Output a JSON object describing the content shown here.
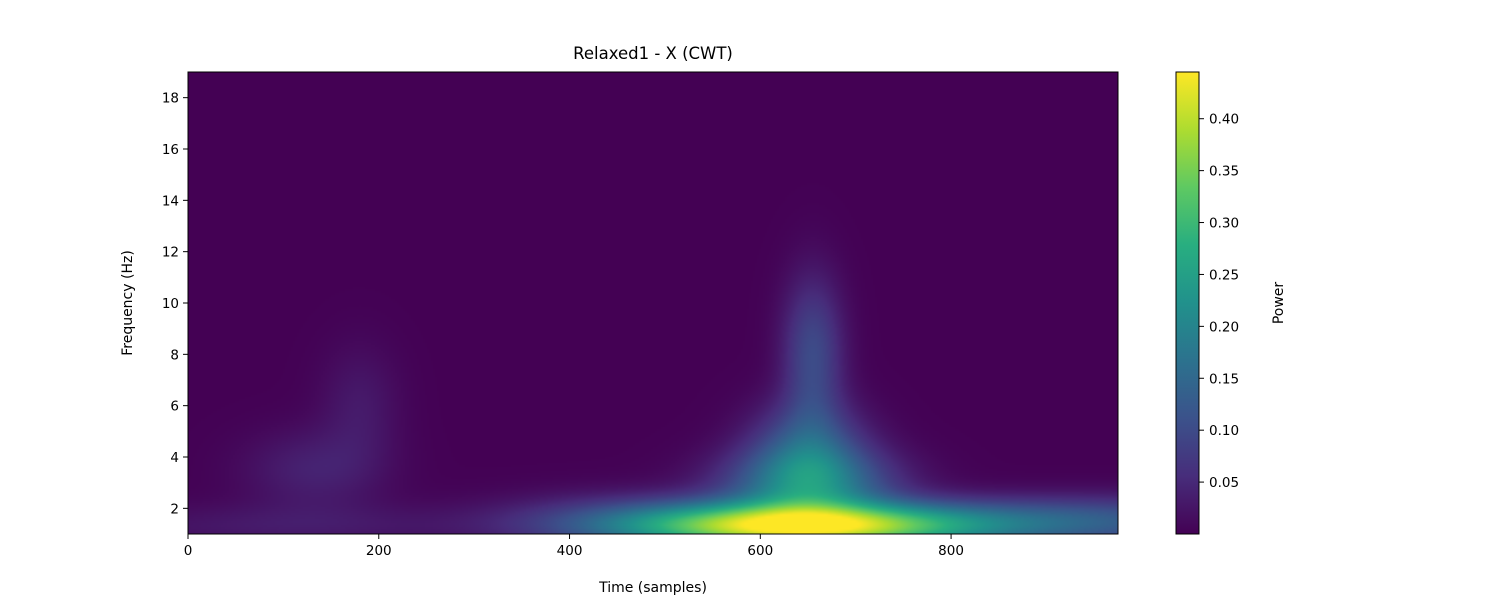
{
  "chart_data": {
    "type": "heatmap",
    "title": "Relaxed1 - X (CWT)",
    "xlabel": "Time (samples)",
    "ylabel": "Frequency (Hz)",
    "xlim": [
      0,
      975
    ],
    "ylim": [
      1,
      19
    ],
    "x_ticks": [
      0,
      200,
      400,
      600,
      800
    ],
    "y_ticks": [
      2,
      4,
      6,
      8,
      10,
      12,
      14,
      16,
      18
    ],
    "grid": false,
    "colormap": "viridis",
    "colorbar": {
      "label": "Power",
      "range": [
        0.0,
        0.445
      ],
      "ticks": [
        "0.05",
        "0.10",
        "0.15",
        "0.20",
        "0.25",
        "0.30",
        "0.35",
        "0.40"
      ]
    },
    "features": [
      {
        "time": 640,
        "freq": 1.3,
        "power": 0.44
      },
      {
        "time": 650,
        "freq": 2.9,
        "power": 0.17
      },
      {
        "time": 650,
        "freq": 4.3,
        "power": 0.12
      },
      {
        "time": 655,
        "freq": 8.0,
        "power": 0.1
      },
      {
        "time": 960,
        "freq": 1.5,
        "power": 0.11
      },
      {
        "time": 130,
        "freq": 3.5,
        "power": 0.04
      },
      {
        "time": 180,
        "freq": 6.0,
        "power": 0.03
      },
      {
        "time": 460,
        "freq": 1.8,
        "power": 0.03
      },
      {
        "time": 100,
        "freq": 1.3,
        "power": 0.03
      }
    ]
  }
}
